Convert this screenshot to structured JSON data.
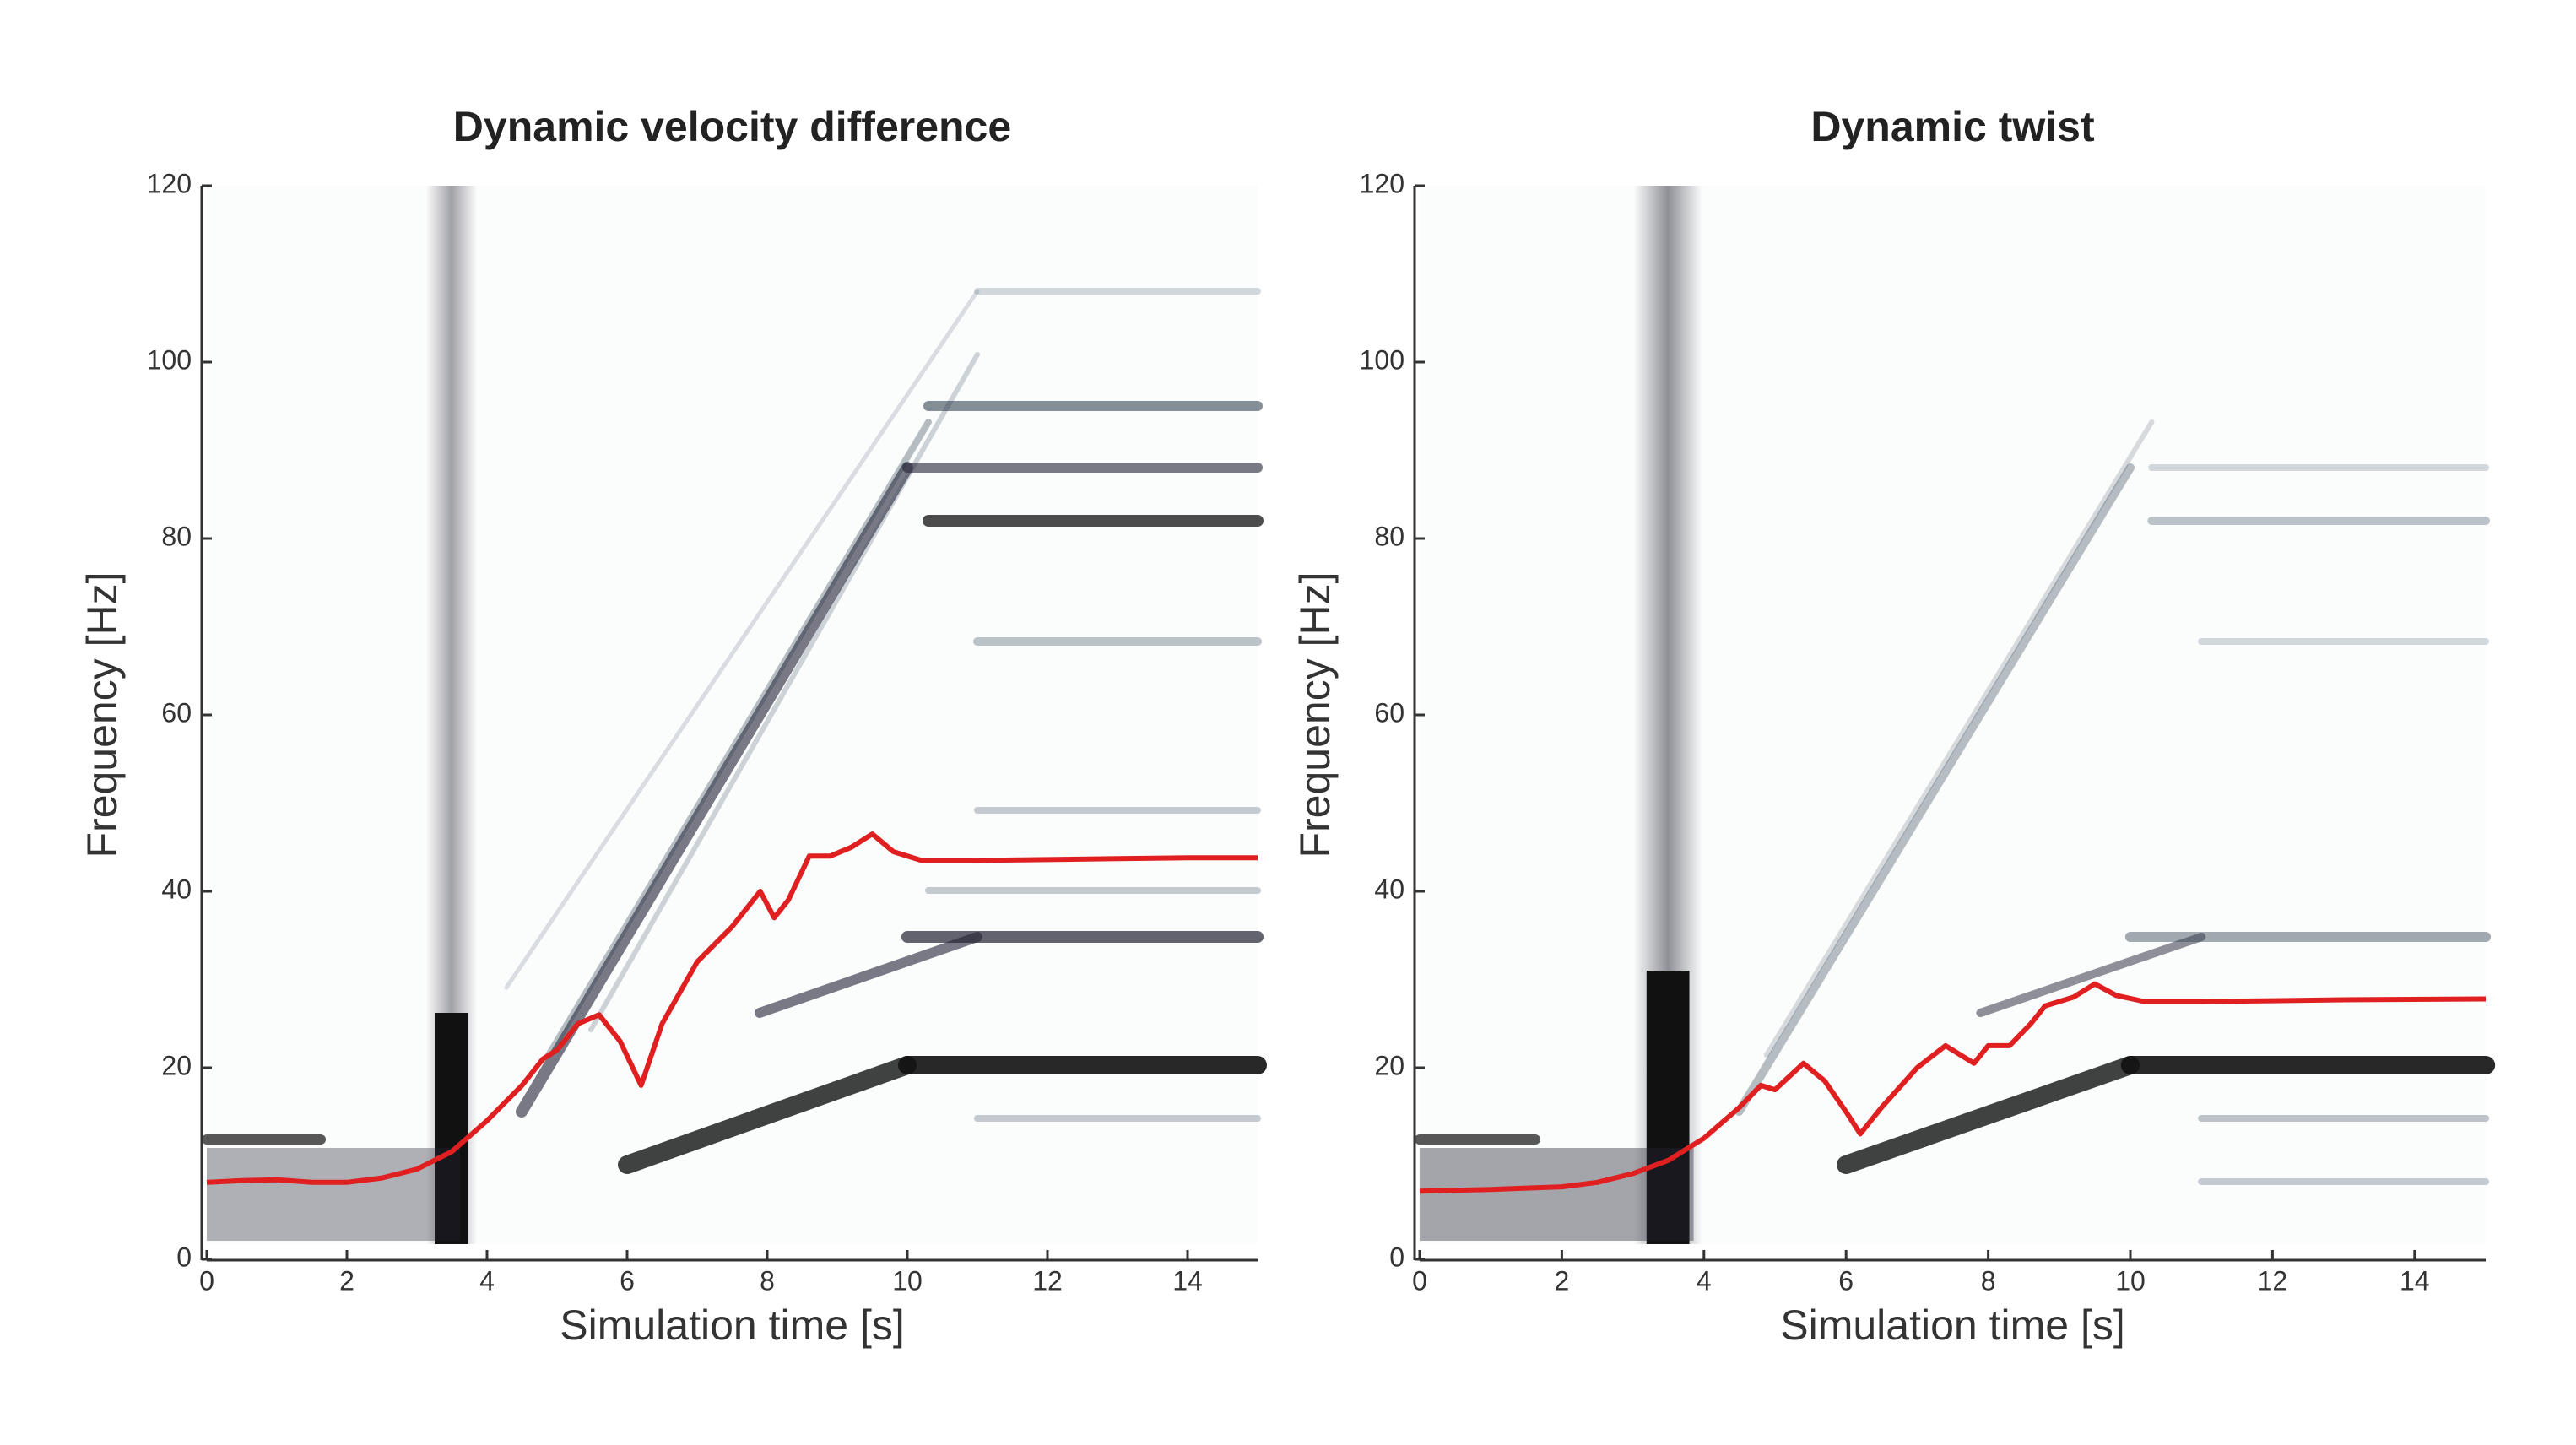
{
  "chart_data": [
    {
      "type": "line",
      "title": "Dynamic velocity difference",
      "xlabel": "Simulation time [s]",
      "ylabel": "Frequency [Hz]",
      "xlim": [
        0,
        15
      ],
      "ylim": [
        0,
        120
      ],
      "xticks": [
        0,
        2,
        4,
        6,
        8,
        10,
        12,
        14
      ],
      "yticks": [
        0,
        20,
        40,
        60,
        80,
        100,
        120
      ],
      "series": [
        {
          "color": "#e02020",
          "x": [
            0,
            0.5,
            1,
            1.5,
            2,
            2.5,
            3,
            3.5,
            4,
            4.5,
            4.8,
            5,
            5.3,
            5.6,
            5.9,
            6.2,
            6.5,
            7,
            7.5,
            7.7,
            7.9,
            8.1,
            8.3,
            8.6,
            8.9,
            9.2,
            9.5,
            9.8,
            10.2,
            11,
            12,
            13,
            14,
            15
          ],
          "values": [
            7,
            7.2,
            7.3,
            7,
            7,
            7.5,
            8.5,
            10.5,
            14,
            18,
            21,
            22,
            25,
            26,
            23,
            18,
            25,
            32,
            36,
            38,
            40,
            37,
            39,
            44,
            44,
            45,
            46.5,
            44.5,
            43.5,
            43.5,
            43.6,
            43.7,
            43.8,
            43.8
          ]
        }
      ]
    },
    {
      "type": "line",
      "title": "Dynamic twist",
      "xlabel": "Simulation time [s]",
      "ylabel": "Frequency [Hz]",
      "xlim": [
        0,
        15
      ],
      "ylim": [
        0,
        120
      ],
      "xticks": [
        0,
        2,
        4,
        6,
        8,
        10,
        12,
        14
      ],
      "yticks": [
        0,
        20,
        40,
        60,
        80,
        100,
        120
      ],
      "series": [
        {
          "color": "#e02020",
          "x": [
            0,
            1,
            2,
            2.5,
            3,
            3.5,
            4,
            4.5,
            4.8,
            5,
            5.4,
            5.7,
            6,
            6.2,
            6.5,
            7,
            7.4,
            7.8,
            8,
            8.3,
            8.6,
            8.8,
            9.2,
            9.5,
            9.8,
            10.2,
            11,
            12,
            13,
            15
          ],
          "values": [
            6,
            6.2,
            6.5,
            7,
            8,
            9.5,
            12,
            15.5,
            18,
            17.5,
            20.5,
            18.5,
            15,
            12.5,
            15.5,
            20,
            22.5,
            20.5,
            22.5,
            22.5,
            25,
            27,
            28,
            29.5,
            28.2,
            27.5,
            27.5,
            27.6,
            27.7,
            27.8
          ]
        }
      ]
    }
  ]
}
